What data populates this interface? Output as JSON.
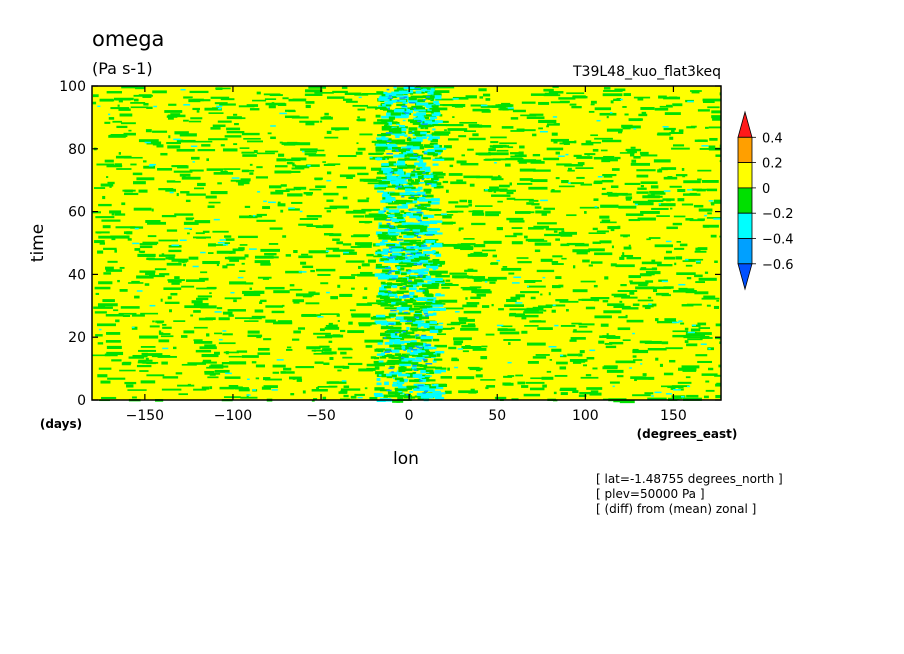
{
  "chart_data": {
    "type": "heatmap",
    "title": "omega",
    "subtitle": "(Pa s-1)",
    "run_label": "T39L48_kuo_flat3keq",
    "xlabel": "lon",
    "xunits": "(degrees_east)",
    "ylabel": "time",
    "yunits": "(days)",
    "xlim": [
      -180,
      177
    ],
    "ylim": [
      0,
      100
    ],
    "xticks": [
      -150,
      -100,
      -50,
      0,
      50,
      100,
      150
    ],
    "yticks": [
      0,
      20,
      40,
      60,
      80,
      100
    ],
    "colorbar": {
      "labels": [
        "0.4",
        "0.2",
        "0",
        "-0.2",
        "-0.4",
        "-0.6"
      ],
      "levels": [
        0.4,
        0.2,
        0,
        -0.2,
        -0.4,
        -0.6
      ],
      "colors": [
        "#ff1a1a",
        "#ff9f00",
        "#ffff00",
        "#00e000",
        "#00ffff",
        "#00a0ff",
        "#0050ff"
      ]
    },
    "field_description_values": {
      "dominant_range": [
        -0.2,
        0.2
      ],
      "ascent_band_lon": [
        -15,
        10
      ],
      "ascent_band_range": [
        -0.4,
        -0.2
      ]
    },
    "notes": [
      "[ lat=-1.48755 degrees_north ]",
      "[ plev=50000 Pa ]",
      "[ (diff) from (mean) zonal ]"
    ]
  }
}
